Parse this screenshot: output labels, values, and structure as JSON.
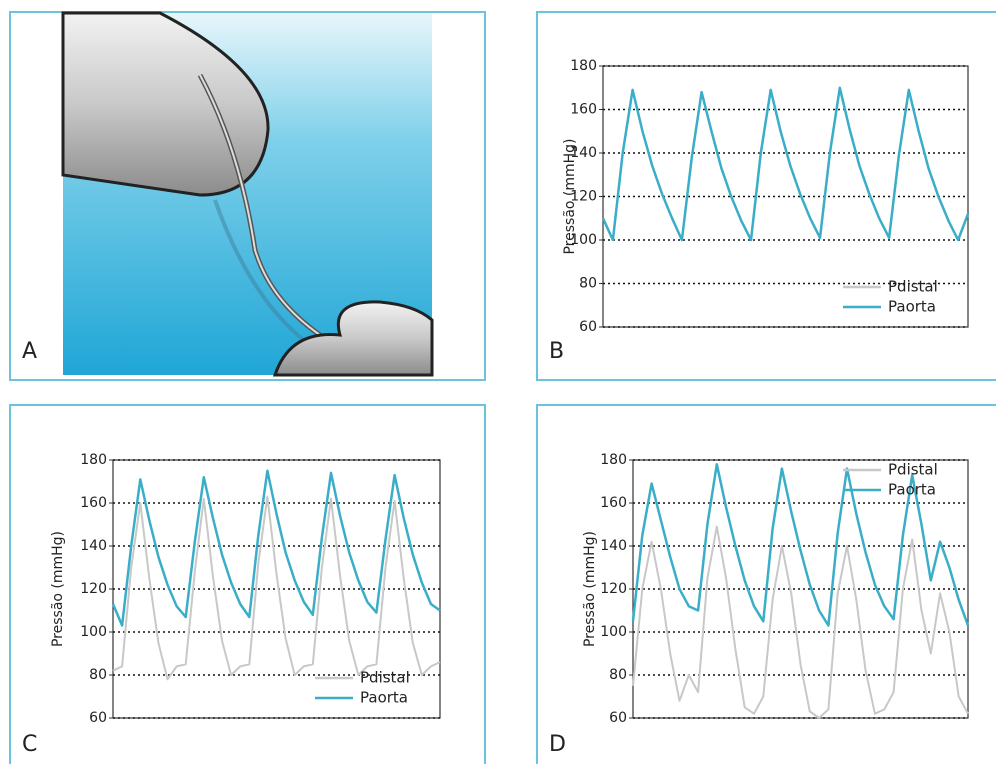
{
  "panel_labels": [
    "A",
    "B",
    "C",
    "D"
  ],
  "chart_data": [
    {
      "type": "line",
      "ylabel": "Pressão (mmHg)",
      "ylim": [
        60,
        180
      ],
      "yticks": [
        60,
        80,
        100,
        120,
        140,
        160,
        180
      ],
      "grid": true,
      "legend": "lower right",
      "series": [
        {
          "name": "Pdistal",
          "color": "#c8c8c8",
          "values": [
            110,
            100,
            140,
            169,
            150,
            134,
            121,
            110,
            100,
            138,
            168,
            150,
            133,
            120,
            109,
            100,
            140,
            169,
            150,
            134,
            121,
            110,
            101,
            140,
            170,
            151,
            134,
            121,
            110,
            101,
            139,
            169,
            150,
            133,
            120,
            109,
            100,
            112
          ]
        },
        {
          "name": "Paorta",
          "color": "#3aaec8",
          "values": [
            110,
            100,
            140,
            169,
            150,
            134,
            121,
            110,
            100,
            138,
            168,
            150,
            133,
            120,
            109,
            100,
            140,
            169,
            150,
            134,
            121,
            110,
            101,
            140,
            170,
            151,
            134,
            121,
            110,
            101,
            139,
            169,
            150,
            133,
            120,
            109,
            100,
            112
          ]
        }
      ]
    },
    {
      "type": "line",
      "ylabel": "Pressão (mmHg)",
      "ylim": [
        60,
        180
      ],
      "yticks": [
        60,
        80,
        100,
        120,
        140,
        160,
        180
      ],
      "grid": true,
      "legend": "lower right",
      "series": [
        {
          "name": "Pdistal",
          "color": "#c8c8c8",
          "values": [
            82,
            84,
            130,
            160,
            125,
            95,
            78,
            84,
            85,
            128,
            162,
            126,
            96,
            80,
            84,
            85,
            132,
            163,
            127,
            97,
            80,
            84,
            85,
            130,
            162,
            126,
            96,
            80,
            84,
            85,
            130,
            161,
            125,
            95,
            80,
            84,
            86
          ]
        },
        {
          "name": "Paorta",
          "color": "#3aaec8",
          "values": [
            113,
            103,
            140,
            171,
            152,
            135,
            122,
            112,
            107,
            142,
            172,
            153,
            136,
            123,
            113,
            107,
            145,
            175,
            155,
            137,
            124,
            114,
            108,
            144,
            174,
            154,
            137,
            124,
            114,
            109,
            143,
            173,
            153,
            136,
            123,
            113,
            110
          ]
        }
      ]
    },
    {
      "type": "line",
      "ylabel": "Pressão (mmHg)",
      "ylim": [
        60,
        180
      ],
      "yticks": [
        60,
        80,
        100,
        120,
        140,
        160,
        180
      ],
      "grid": true,
      "legend": "upper right",
      "series": [
        {
          "name": "Pdistal",
          "color": "#c8c8c8",
          "values": [
            75,
            120,
            142,
            120,
            90,
            68,
            80,
            72,
            125,
            149,
            125,
            92,
            65,
            62,
            70,
            115,
            140,
            118,
            85,
            63,
            60,
            64,
            118,
            140,
            115,
            82,
            62,
            64,
            72,
            120,
            143,
            110,
            90,
            118,
            100,
            70,
            62
          ]
        },
        {
          "name": "Paorta",
          "color": "#3aaec8",
          "values": [
            105,
            145,
            169,
            152,
            135,
            120,
            112,
            110,
            150,
            178,
            158,
            140,
            124,
            112,
            105,
            148,
            176,
            156,
            138,
            122,
            110,
            103,
            146,
            176,
            155,
            137,
            122,
            112,
            106,
            145,
            173,
            150,
            124,
            142,
            130,
            115,
            103
          ]
        }
      ]
    }
  ]
}
